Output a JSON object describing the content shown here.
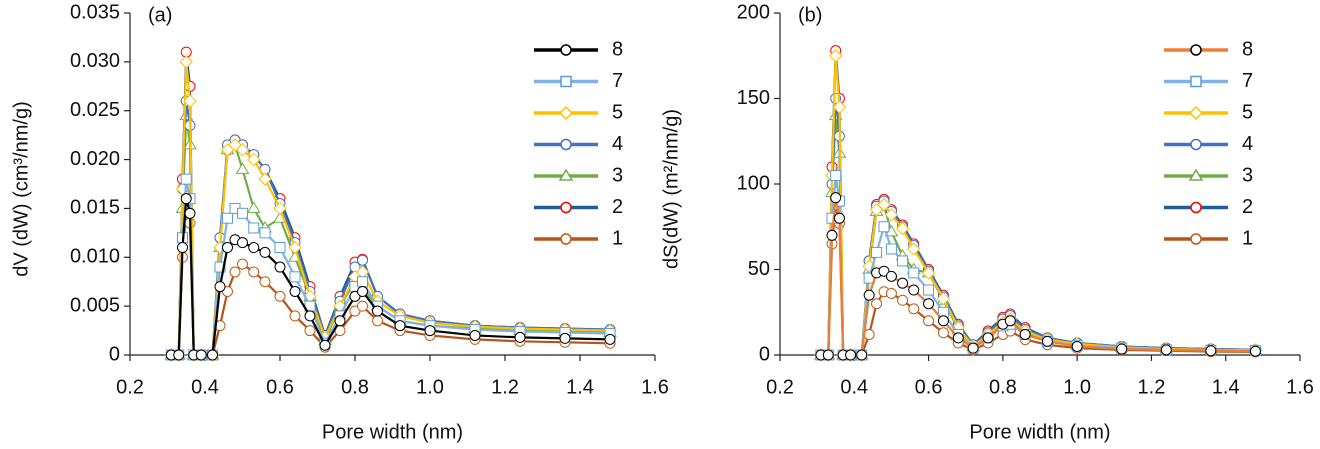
{
  "chart_data": [
    {
      "type": "line",
      "label": "(a)",
      "x_label": "Pore width (nm)",
      "y_label": "dV (dW) (cm³/nm/g)",
      "xlim": [
        0.2,
        1.6
      ],
      "xticks": [
        0.2,
        0.4,
        0.6,
        0.8,
        {
          "value": 1,
          "label": "1.0"
        },
        1.2,
        1.4,
        1.6
      ],
      "ylim": [
        0,
        0.035
      ],
      "yticks": [
        0,
        0.005,
        {
          "value": 0.01,
          "label": "0.010"
        },
        0.015,
        {
          "value": 0.02,
          "label": "0.020"
        },
        0.025,
        {
          "value": 0.03,
          "label": "0.030"
        },
        0.035
      ],
      "legend": "upper right",
      "x": [
        0.31,
        0.33,
        0.34,
        0.35,
        0.36,
        0.37,
        0.39,
        0.42,
        0.44,
        0.46,
        0.48,
        0.5,
        0.53,
        0.56,
        0.6,
        0.64,
        0.68,
        0.72,
        0.76,
        0.8,
        0.82,
        0.86,
        0.92,
        1.0,
        1.12,
        1.24,
        1.36,
        1.48
      ],
      "series": [
        {
          "name": "8",
          "color": "#000000",
          "marker": "circle",
          "marker_color": "#000000",
          "values": [
            0,
            0,
            0.011,
            0.016,
            0.0145,
            0,
            0,
            0,
            0.007,
            0.011,
            0.0118,
            0.0115,
            0.011,
            0.0105,
            0.009,
            0.0065,
            0.004,
            0.001,
            0.0035,
            0.006,
            0.0065,
            0.0045,
            0.003,
            0.0025,
            0.002,
            0.0018,
            0.0017,
            0.0016
          ]
        },
        {
          "name": "7",
          "color": "#7fb2e5",
          "marker": "square",
          "marker_color": "#5b9bd5",
          "values": [
            0,
            0,
            0.012,
            0.018,
            0.016,
            0,
            0,
            0,
            0.009,
            0.014,
            0.015,
            0.0145,
            0.013,
            0.0125,
            0.011,
            0.008,
            0.005,
            0.0012,
            0.004,
            0.007,
            0.0075,
            0.005,
            0.0035,
            0.003,
            0.0026,
            0.0024,
            0.0023,
            0.0022
          ]
        },
        {
          "name": "5",
          "color": "#ffc000",
          "marker": "diamond",
          "marker_color": "#ffc000",
          "values": [
            0,
            0,
            0.017,
            0.03,
            0.026,
            0,
            0,
            0,
            0.011,
            0.021,
            0.0215,
            0.021,
            0.02,
            0.018,
            0.015,
            0.011,
            0.006,
            0.0018,
            0.005,
            0.008,
            0.0085,
            0.0055,
            0.004,
            0.0033,
            0.0029,
            0.0027,
            0.0026,
            0.0025
          ]
        },
        {
          "name": "4",
          "color": "#4472c4",
          "marker": "circle",
          "marker_color": "#4472c4",
          "values": [
            0,
            0,
            0.017,
            0.026,
            0.0235,
            0,
            0,
            0,
            0.012,
            0.0215,
            0.022,
            0.0215,
            0.0205,
            0.019,
            0.0155,
            0.0115,
            0.0065,
            0.002,
            0.0055,
            0.009,
            0.0097,
            0.006,
            0.0042,
            0.0035,
            0.003,
            0.0028,
            0.0027,
            0.0026
          ]
        },
        {
          "name": "3",
          "color": "#70ad47",
          "marker": "triangle",
          "marker_color": "#70ad47",
          "values": [
            0,
            0,
            0.015,
            0.0245,
            0.0215,
            0,
            0,
            0,
            0.011,
            0.021,
            0.0215,
            0.019,
            0.015,
            0.013,
            0.014,
            0.01,
            0.006,
            0.0015,
            0.005,
            0.0075,
            0.0068,
            0.005,
            0.0035,
            0.003,
            0.0027,
            0.0025,
            0.0024,
            0.0023
          ]
        },
        {
          "name": "2",
          "color": "#1f5c99",
          "marker": "circle",
          "marker_color": "#ff0000",
          "values": [
            0,
            0,
            0.018,
            0.031,
            0.0275,
            0,
            0,
            0,
            0.012,
            0.021,
            0.022,
            0.0215,
            0.0205,
            0.019,
            0.016,
            0.012,
            0.007,
            0.002,
            0.006,
            0.0095,
            0.0098,
            0.006,
            0.0042,
            0.0035,
            0.003,
            0.0028,
            0.0027,
            0.0026
          ]
        },
        {
          "name": "1",
          "color": "#b5541c",
          "marker": "circle",
          "marker_color": "#c55a11",
          "values": [
            0,
            0,
            0.01,
            0.015,
            0.0135,
            0,
            0,
            0,
            0.003,
            0.0065,
            0.0085,
            0.0093,
            0.0085,
            0.0075,
            0.006,
            0.004,
            0.0025,
            0.0008,
            0.0025,
            0.0045,
            0.005,
            0.0035,
            0.0025,
            0.002,
            0.0016,
            0.0014,
            0.0013,
            0.0012
          ]
        }
      ]
    },
    {
      "type": "line",
      "label": "(b)",
      "x_label": "Pore width (nm)",
      "y_label": "dS(dW)  (m²/nm/g)",
      "xlim": [
        0.2,
        1.6
      ],
      "xticks": [
        0.2,
        0.4,
        0.6,
        0.8,
        {
          "value": 1,
          "label": "1.0"
        },
        1.2,
        1.4,
        1.6
      ],
      "ylim": [
        0,
        200
      ],
      "yticks": [
        0,
        50,
        100,
        150,
        200
      ],
      "legend": "upper right",
      "x": [
        0.31,
        0.33,
        0.34,
        0.35,
        0.36,
        0.37,
        0.39,
        0.42,
        0.44,
        0.46,
        0.48,
        0.5,
        0.53,
        0.56,
        0.6,
        0.64,
        0.68,
        0.72,
        0.76,
        0.8,
        0.82,
        0.86,
        0.92,
        1.0,
        1.12,
        1.24,
        1.36,
        1.48
      ],
      "series": [
        {
          "name": "8",
          "color": "#ed7d31",
          "marker": "circle",
          "marker_color": "#000000",
          "values": [
            0,
            0,
            70,
            92,
            80,
            0,
            0,
            0,
            35,
            48,
            49,
            46,
            42,
            38,
            30,
            20,
            10,
            4,
            10,
            18,
            20,
            12,
            8,
            5,
            3.5,
            3,
            2.5,
            2.2
          ]
        },
        {
          "name": "7",
          "color": "#7fb2e5",
          "marker": "square",
          "marker_color": "#5b9bd5",
          "values": [
            0,
            0,
            80,
            105,
            90,
            0,
            0,
            0,
            45,
            60,
            75,
            62,
            55,
            48,
            38,
            25,
            12,
            4,
            10,
            17,
            18,
            12,
            8,
            5.5,
            4,
            3,
            2.7,
            2.5
          ]
        },
        {
          "name": "5",
          "color": "#ffc000",
          "marker": "diamond",
          "marker_color": "#ffc000",
          "values": [
            0,
            0,
            105,
            175,
            145,
            0,
            0,
            0,
            52,
            85,
            88,
            82,
            74,
            62,
            48,
            33,
            16,
            5,
            12,
            19,
            21,
            14,
            9,
            6.5,
            4.5,
            3.5,
            3,
            2.8
          ]
        },
        {
          "name": "4",
          "color": "#4472c4",
          "marker": "circle",
          "marker_color": "#4472c4",
          "values": [
            0,
            0,
            100,
            150,
            128,
            0,
            0,
            0,
            55,
            87,
            90,
            84,
            75,
            64,
            49,
            34,
            17,
            6,
            13,
            21,
            23,
            15,
            10,
            7,
            5,
            4,
            3.5,
            3
          ]
        },
        {
          "name": "3",
          "color": "#70ad47",
          "marker": "triangle",
          "marker_color": "#70ad47",
          "values": [
            0,
            0,
            95,
            140,
            118,
            0,
            0,
            0,
            50,
            84,
            87,
            72,
            58,
            50,
            48,
            32,
            15,
            5,
            12,
            18,
            19,
            13,
            9,
            6,
            4.5,
            3.5,
            3,
            2.8
          ]
        },
        {
          "name": "2",
          "color": "#1f5c99",
          "marker": "circle",
          "marker_color": "#ff0000",
          "values": [
            0,
            0,
            110,
            178,
            150,
            0,
            0,
            0,
            55,
            88,
            91,
            85,
            76,
            65,
            50,
            35,
            18,
            6,
            14,
            22,
            24,
            16,
            10,
            7,
            5,
            4,
            3.5,
            3
          ]
        },
        {
          "name": "1",
          "color": "#b5541c",
          "marker": "circle",
          "marker_color": "#c55a11",
          "values": [
            0,
            0,
            65,
            88,
            77,
            0,
            0,
            0,
            12,
            30,
            37,
            36,
            32,
            27,
            20,
            13,
            7,
            3,
            7,
            12,
            14,
            9,
            6,
            4,
            3,
            2.5,
            2,
            1.8
          ]
        }
      ]
    }
  ]
}
